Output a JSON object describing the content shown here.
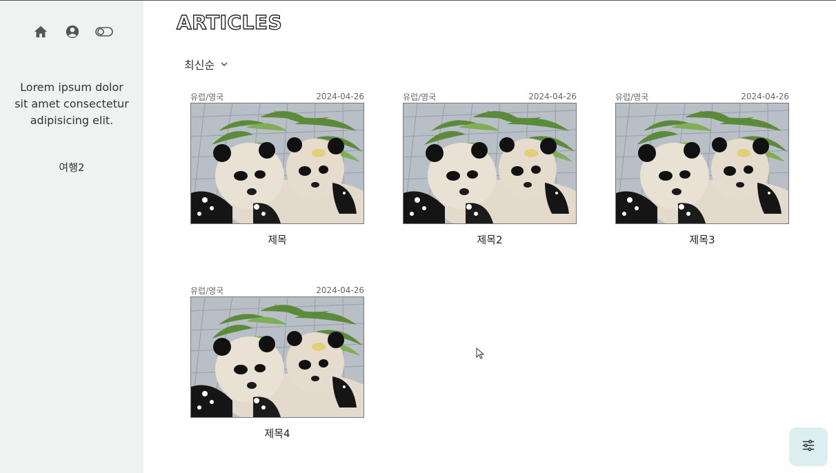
{
  "sidebar": {
    "icons": [
      "home-icon",
      "user-icon",
      "toggle-icon"
    ],
    "intro": "Lorem ipsum dolor sit amet consectetur adipisicing elit.",
    "category": "여행2"
  },
  "main": {
    "title": "ARTICLES",
    "sort_label": "최신순",
    "articles": [
      {
        "category": "유럽/영국",
        "date": "2024-04-26",
        "title": "제목"
      },
      {
        "category": "유럽/영국",
        "date": "2024-04-26",
        "title": "제목2"
      },
      {
        "category": "유럽/영국",
        "date": "2024-04-26",
        "title": "제목3"
      },
      {
        "category": "유럽/영국",
        "date": "2024-04-26",
        "title": "제목4"
      }
    ]
  },
  "colors": {
    "sidebar_bg": "#eef2f1",
    "settings_bg": "#dceef0"
  }
}
